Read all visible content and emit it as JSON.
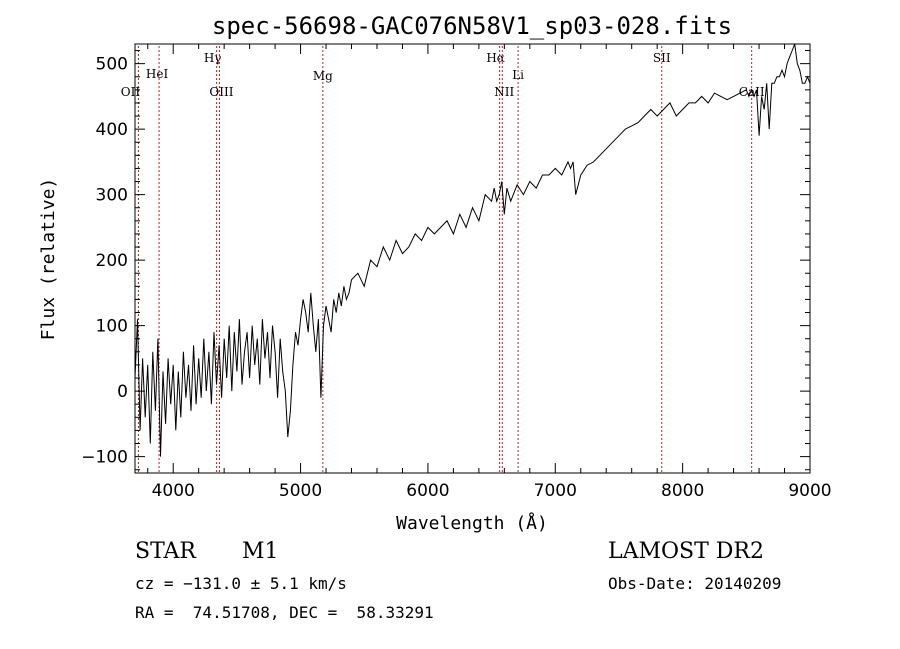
{
  "chart_data": {
    "type": "line",
    "title": "spec-56698-GAC076N58V1_sp03-028.fits",
    "xlabel": "Wavelength (Å)",
    "ylabel": "Flux (relative)",
    "xlim": [
      3700,
      9000
    ],
    "ylim": [
      -125,
      530
    ],
    "xticks": [
      4000,
      5000,
      6000,
      7000,
      8000,
      9000
    ],
    "xtick_labels": [
      "4000",
      "5000",
      "6000",
      "7000",
      "8000",
      "9000"
    ],
    "yticks": [
      -100,
      0,
      100,
      200,
      300,
      400,
      500
    ],
    "ytick_labels": [
      "−100",
      "0",
      "100",
      "200",
      "300",
      "400",
      "500"
    ],
    "grid": false,
    "series": [
      {
        "color": "#000000",
        "x": [
          3700,
          3720,
          3740,
          3760,
          3780,
          3800,
          3820,
          3840,
          3860,
          3880,
          3900,
          3920,
          3940,
          3960,
          3980,
          4000,
          4020,
          4040,
          4060,
          4080,
          4100,
          4120,
          4140,
          4160,
          4180,
          4200,
          4220,
          4240,
          4260,
          4280,
          4300,
          4320,
          4340,
          4360,
          4380,
          4400,
          4420,
          4440,
          4460,
          4480,
          4500,
          4520,
          4540,
          4560,
          4580,
          4600,
          4620,
          4640,
          4660,
          4680,
          4700,
          4720,
          4740,
          4760,
          4780,
          4800,
          4820,
          4840,
          4860,
          4880,
          4900,
          4920,
          4940,
          4960,
          4980,
          5000,
          5020,
          5040,
          5060,
          5080,
          5100,
          5120,
          5140,
          5160,
          5180,
          5200,
          5220,
          5240,
          5260,
          5280,
          5300,
          5320,
          5340,
          5360,
          5380,
          5400,
          5450,
          5500,
          5550,
          5600,
          5650,
          5700,
          5750,
          5800,
          5850,
          5900,
          5950,
          6000,
          6050,
          6100,
          6150,
          6200,
          6250,
          6300,
          6350,
          6400,
          6450,
          6500,
          6520,
          6540,
          6560,
          6580,
          6600,
          6620,
          6650,
          6700,
          6750,
          6800,
          6850,
          6900,
          6950,
          7000,
          7050,
          7100,
          7120,
          7140,
          7160,
          7200,
          7250,
          7300,
          7350,
          7400,
          7450,
          7500,
          7550,
          7600,
          7650,
          7700,
          7750,
          7800,
          7850,
          7900,
          7950,
          8000,
          8050,
          8100,
          8150,
          8200,
          8250,
          8300,
          8350,
          8400,
          8450,
          8500,
          8520,
          8540,
          8560,
          8580,
          8600,
          8620,
          8640,
          8660,
          8680,
          8700,
          8720,
          8740,
          8760,
          8780,
          8800,
          8820,
          8840,
          8860,
          8880,
          8900,
          8920,
          8940,
          8960,
          8980,
          9000
        ],
        "y": [
          20,
          110,
          -60,
          50,
          -40,
          40,
          -80,
          60,
          -30,
          80,
          -100,
          30,
          -50,
          50,
          -20,
          40,
          -60,
          30,
          -40,
          60,
          -10,
          40,
          -30,
          70,
          -20,
          50,
          -10,
          80,
          0,
          60,
          -20,
          90,
          10,
          70,
          -10,
          80,
          20,
          100,
          0,
          90,
          30,
          110,
          10,
          60,
          90,
          20,
          100,
          40,
          80,
          10,
          110,
          50,
          90,
          20,
          100,
          60,
          -10,
          80,
          30,
          0,
          -70,
          -30,
          40,
          90,
          70,
          110,
          140,
          120,
          90,
          150,
          100,
          60,
          110,
          -10,
          100,
          130,
          110,
          90,
          140,
          120,
          150,
          130,
          160,
          140,
          150,
          170,
          180,
          160,
          200,
          190,
          220,
          200,
          230,
          210,
          220,
          240,
          230,
          250,
          240,
          250,
          260,
          240,
          270,
          250,
          280,
          260,
          300,
          290,
          310,
          290,
          300,
          320,
          270,
          310,
          290,
          315,
          300,
          320,
          310,
          330,
          330,
          340,
          330,
          350,
          340,
          350,
          300,
          330,
          345,
          350,
          360,
          370,
          380,
          390,
          400,
          405,
          410,
          420,
          430,
          420,
          430,
          440,
          420,
          430,
          440,
          440,
          450,
          440,
          455,
          450,
          445,
          450,
          455,
          460,
          450,
          460,
          450,
          460,
          390,
          450,
          430,
          470,
          400,
          470,
          470,
          480,
          480,
          490,
          480,
          500,
          510,
          520,
          530,
          500,
          490,
          470,
          470,
          480,
          470
        ]
      }
    ],
    "annotations": [
      {
        "label": "OII",
        "x": 3727
      },
      {
        "label": "HeI",
        "x": 3889
      },
      {
        "label": "Hγ",
        "x": 4341
      },
      {
        "label": "OIII",
        "x": 4363
      },
      {
        "label": "Mg",
        "x": 5175
      },
      {
        "label": "Hα",
        "x": 6563
      },
      {
        "label": "NII",
        "x": 6584
      },
      {
        "label": "Li",
        "x": 6708
      },
      {
        "label": "SII",
        "x": 7836
      },
      {
        "label": "CaII",
        "x": 8542
      }
    ]
  },
  "info": {
    "object_type": "STAR",
    "subclass": "M1",
    "survey": "LAMOST DR2",
    "cz_line": "cz = −131.0 ± 5.1 km/s",
    "obs_date_line": "Obs-Date: 20140209",
    "radec_line": "RA =  74.51708, DEC =  58.33291"
  }
}
